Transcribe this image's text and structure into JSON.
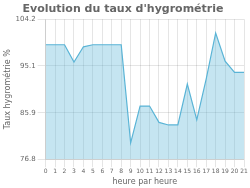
{
  "chart_data": {
    "type": "area",
    "title": "Evolution du taux d'hygrométrie",
    "x_label": "heure par heure",
    "y_label": "Taux hygrométrie %",
    "x": [
      0,
      1,
      2,
      3,
      4,
      5,
      6,
      7,
      8,
      9,
      10,
      11,
      12,
      13,
      14,
      15,
      16,
      17,
      18,
      19,
      20,
      21
    ],
    "values": [
      99.2,
      99.2,
      99.2,
      95.8,
      98.8,
      99.2,
      99.2,
      99.2,
      99.2,
      80.0,
      87.2,
      87.2,
      84.0,
      83.5,
      83.5,
      91.5,
      84.5,
      92.5,
      101.5,
      96.0,
      93.8,
      93.8
    ],
    "color": "#5ab4d6",
    "xlim": [
      0,
      21
    ],
    "xticks": [
      0,
      1,
      2,
      3,
      4,
      5,
      6,
      7,
      8,
      9,
      10,
      11,
      12,
      13,
      14,
      15,
      16,
      17,
      18,
      19,
      20,
      21
    ],
    "ylim": [
      76.8,
      104.2
    ],
    "yticks": [
      76.8,
      85.9,
      95.1,
      104.2
    ],
    "grid": true
  }
}
